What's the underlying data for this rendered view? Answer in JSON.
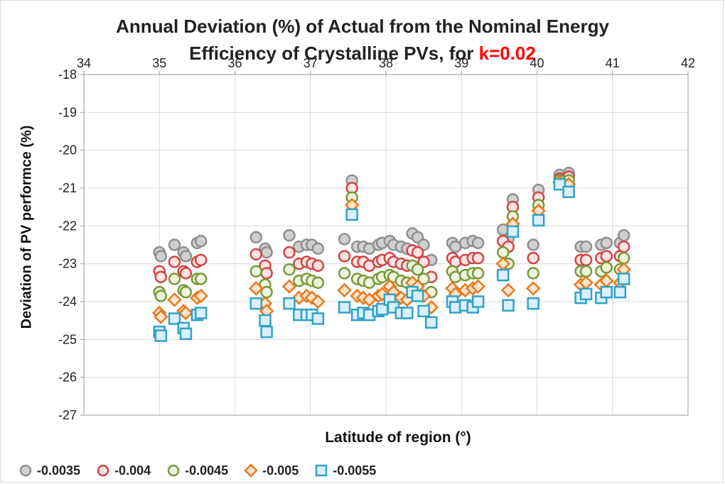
{
  "chart_data": {
    "type": "scatter",
    "title_line1": "Annual Deviation (%) of Actual from the Nominal Energy",
    "title_line2_prefix": "Efficiency of Crystalline PVs,  for ",
    "title_highlight": "k=0.02",
    "xlabel": "Latitude of region (°)",
    "ylabel": "Deviation of PV performce (%)",
    "xlim": [
      34,
      42
    ],
    "ylim": [
      -27,
      -18
    ],
    "x_ticks": [
      "34",
      "35",
      "36",
      "37",
      "38",
      "39",
      "40",
      "41",
      "42"
    ],
    "y_ticks": [
      "-18",
      "-19",
      "-20",
      "-21",
      "-22",
      "-23",
      "-24",
      "-25",
      "-26",
      "-27"
    ],
    "grid": true,
    "x_axis_position": "top",
    "legend_position": "bottom-left",
    "x": [
      35.0,
      35.02,
      35.2,
      35.32,
      35.35,
      35.5,
      35.55,
      36.28,
      36.4,
      36.42,
      36.72,
      36.85,
      36.95,
      37.02,
      37.1,
      37.45,
      37.55,
      37.62,
      37.7,
      37.78,
      37.9,
      37.95,
      38.05,
      38.1,
      38.2,
      38.28,
      38.35,
      38.42,
      38.5,
      38.6,
      38.88,
      38.92,
      39.05,
      39.15,
      39.22,
      39.55,
      39.62,
      39.68,
      39.95,
      40.02,
      40.3,
      40.42,
      40.58,
      40.65,
      40.85,
      40.92,
      41.1,
      41.15
    ],
    "series": [
      {
        "name": "-0.0035",
        "marker": "circle",
        "fill": "#d0d0d0",
        "stroke": "#8f8f8f",
        "values": [
          -22.7,
          -22.8,
          -22.5,
          -22.7,
          -22.8,
          -22.45,
          -22.4,
          -22.3,
          -22.6,
          -22.7,
          -22.25,
          -22.55,
          -22.5,
          -22.5,
          -22.6,
          -22.35,
          -20.8,
          -22.55,
          -22.55,
          -22.6,
          -22.5,
          -22.45,
          -22.4,
          -22.5,
          -22.55,
          -22.6,
          -22.2,
          -22.3,
          -22.5,
          -22.9,
          -22.45,
          -22.55,
          -22.45,
          -22.4,
          -22.45,
          -22.1,
          -22.35,
          -21.3,
          -22.5,
          -21.05,
          -20.65,
          -20.6,
          -22.55,
          -22.55,
          -22.5,
          -22.45,
          -22.45,
          -22.25
        ]
      },
      {
        "name": "-0.004",
        "marker": "circle",
        "fill": "#ffe4e4",
        "stroke": "#d04545",
        "values": [
          -23.2,
          -23.35,
          -22.95,
          -23.2,
          -23.25,
          -22.95,
          -22.9,
          -22.75,
          -23.05,
          -23.25,
          -22.7,
          -23.0,
          -22.95,
          -23.0,
          -23.05,
          -22.8,
          -21.0,
          -22.95,
          -22.95,
          -23.05,
          -22.95,
          -22.9,
          -22.85,
          -22.95,
          -23.0,
          -23.05,
          -22.65,
          -22.7,
          -22.95,
          -23.35,
          -22.85,
          -22.95,
          -22.9,
          -22.85,
          -22.85,
          -22.4,
          -22.55,
          -21.5,
          -22.85,
          -21.25,
          -20.75,
          -20.7,
          -22.9,
          -22.9,
          -22.85,
          -22.8,
          -22.8,
          -22.55
        ]
      },
      {
        "name": "-0.0045",
        "marker": "circle",
        "fill": "#edf3dc",
        "stroke": "#77993a",
        "values": [
          -23.75,
          -23.85,
          -23.4,
          -23.7,
          -23.75,
          -23.4,
          -23.4,
          -23.2,
          -23.55,
          -23.75,
          -23.15,
          -23.45,
          -23.4,
          -23.45,
          -23.5,
          -23.25,
          -21.25,
          -23.4,
          -23.45,
          -23.5,
          -23.4,
          -23.35,
          -23.3,
          -23.35,
          -23.45,
          -23.5,
          -23.05,
          -23.15,
          -23.4,
          -23.75,
          -23.2,
          -23.35,
          -23.3,
          -23.25,
          -23.25,
          -22.7,
          -23.0,
          -21.75,
          -23.25,
          -21.45,
          -20.8,
          -20.8,
          -23.2,
          -23.2,
          -23.2,
          -23.1,
          -23.15,
          -22.85
        ]
      },
      {
        "name": "-0.005",
        "marker": "diamond",
        "fill": "#fce5cd",
        "stroke": "#e9781b",
        "values": [
          -24.3,
          -24.4,
          -23.95,
          -24.25,
          -24.3,
          -23.9,
          -23.85,
          -23.65,
          -24.05,
          -24.25,
          -23.6,
          -23.9,
          -23.85,
          -23.9,
          -24.0,
          -23.7,
          -21.45,
          -23.85,
          -23.9,
          -23.95,
          -23.85,
          -23.8,
          -23.6,
          -23.75,
          -23.9,
          -23.95,
          -23.5,
          -23.6,
          -23.85,
          -24.15,
          -23.65,
          -23.8,
          -23.7,
          -23.65,
          -23.6,
          -23.0,
          -23.7,
          -21.95,
          -23.65,
          -21.6,
          -20.85,
          -20.9,
          -23.55,
          -23.5,
          -23.55,
          -23.45,
          -23.5,
          -23.15
        ]
      },
      {
        "name": "-0.0055",
        "marker": "square",
        "fill": "#dcefff",
        "stroke": "#31a2c6",
        "values": [
          -24.8,
          -24.9,
          -24.45,
          -24.7,
          -24.85,
          -24.35,
          -24.3,
          -24.05,
          -24.5,
          -24.8,
          -24.05,
          -24.35,
          -24.35,
          -24.35,
          -24.45,
          -24.15,
          -21.7,
          -24.35,
          -24.3,
          -24.35,
          -24.25,
          -24.2,
          -23.95,
          -24.15,
          -24.3,
          -24.3,
          -23.75,
          -23.85,
          -24.25,
          -24.55,
          -24.0,
          -24.15,
          -24.1,
          -24.15,
          -24.0,
          -23.3,
          -24.1,
          -22.15,
          -24.05,
          -21.85,
          -20.9,
          -21.1,
          -23.9,
          -23.8,
          -23.9,
          -23.75,
          -23.75,
          -23.4
        ]
      }
    ]
  }
}
